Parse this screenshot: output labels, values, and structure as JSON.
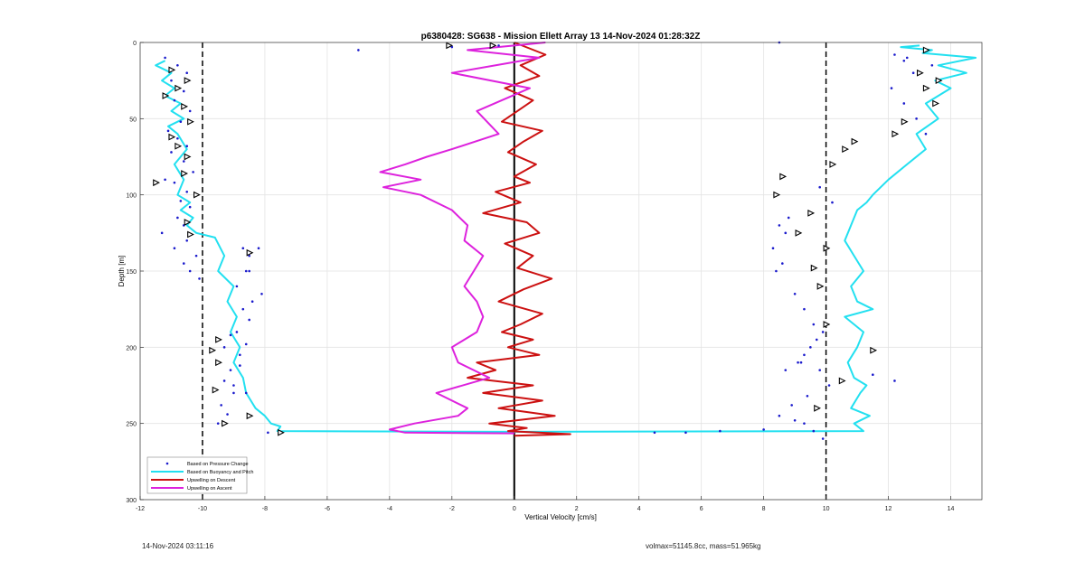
{
  "chart_data": {
    "type": "line",
    "title": "p6380428: SG638 - Mission Ellett Array 13 14-Nov-2024 01:28:32Z",
    "xlabel": "Vertical Velocity [cm/s]",
    "ylabel": "Depth [m]",
    "xlim": [
      -12,
      15
    ],
    "ylim": [
      0,
      300
    ],
    "y_reversed": true,
    "grid": true,
    "legend_position": "bottom-left",
    "x_ticks": [
      -12,
      -10,
      -8,
      -6,
      -4,
      -2,
      0,
      2,
      4,
      6,
      8,
      10,
      12,
      14
    ],
    "y_ticks": [
      0,
      50,
      100,
      150,
      200,
      250,
      300
    ],
    "reference_lines": [
      {
        "x": -10,
        "style": "dashed",
        "color": "#000000"
      },
      {
        "x": 10,
        "style": "dashed",
        "color": "#000000"
      },
      {
        "x": 0,
        "style": "solid",
        "color": "#000000"
      }
    ],
    "series": [
      {
        "name": "Based on Pressure Change",
        "style": "dots",
        "color": "#1a1acc",
        "x": [
          -11.2,
          -10.8,
          -10.5,
          -11.0,
          -10.6,
          -10.9,
          -10.4,
          -10.7,
          -11.1,
          -10.8,
          -10.5,
          -11.0,
          -10.6,
          -10.3,
          -10.9,
          -10.5,
          -11.2,
          -10.7,
          -10.4,
          -10.8,
          -10.6,
          -11.3,
          -10.5,
          -10.9,
          -10.2,
          -10.6,
          -10.4,
          -10.1,
          -8.7,
          -8.5,
          -8.6,
          -8.9,
          -8.4,
          -8.7,
          -8.5,
          -8.9,
          -8.6,
          -8.8,
          -9.1,
          -9.3,
          -9.0,
          -9.4,
          -9.2,
          -9.5,
          -9.1,
          -9.3,
          -8.8,
          -9.0,
          -8.6,
          -8.2,
          -8.5,
          -8.1,
          -7.9,
          -5.0,
          -2.0,
          -0.5,
          8.5,
          9.8,
          10.2,
          8.8,
          8.5,
          8.7,
          8.3,
          8.6,
          8.4,
          9.0,
          9.3,
          9.6,
          9.9,
          9.5,
          9.2,
          9.8,
          10.1,
          9.4,
          9.7,
          8.5,
          9.0,
          8.9,
          9.3,
          9.6,
          9.9,
          9.1,
          8.7,
          9.3,
          9.7,
          12.1,
          12.5,
          12.9,
          13.2,
          12.8,
          13.4,
          12.6,
          12.2,
          12.5,
          4.5,
          5.5,
          6.6,
          8.0,
          11.5,
          12.2
        ],
        "y": [
          10,
          15,
          20,
          25,
          32,
          38,
          45,
          52,
          58,
          63,
          68,
          72,
          78,
          85,
          92,
          98,
          90,
          104,
          108,
          115,
          120,
          125,
          130,
          135,
          140,
          145,
          150,
          155,
          135,
          140,
          150,
          160,
          170,
          175,
          182,
          190,
          198,
          205,
          215,
          222,
          230,
          238,
          244,
          250,
          192,
          200,
          212,
          225,
          230,
          135,
          150,
          165,
          256,
          5,
          3,
          2,
          0,
          95,
          105,
          115,
          120,
          125,
          135,
          145,
          150,
          165,
          175,
          185,
          190,
          200,
          210,
          215,
          225,
          232,
          240,
          245,
          248,
          238,
          250,
          255,
          260,
          210,
          215,
          205,
          195,
          30,
          40,
          50,
          60,
          20,
          15,
          10,
          8,
          12,
          256,
          256,
          255,
          254,
          218,
          222
        ]
      },
      {
        "name": "Based on Buoyancy and Pitch",
        "style": "line",
        "color": "#22e0f0",
        "x": [
          -11.2,
          -11.5,
          -11.0,
          -11.3,
          -10.9,
          -11.2,
          -10.7,
          -11.0,
          -10.6,
          -11.1,
          -10.8,
          -10.5,
          -10.9,
          -10.6,
          -10.8,
          -10.4,
          -10.7,
          -10.3,
          -10.5,
          -10.2,
          -9.6,
          -9.3,
          -9.5,
          -9.0,
          -9.2,
          -8.9,
          -9.1,
          -8.8,
          -9.0,
          -8.7,
          -8.6,
          -8.3,
          -8.0,
          -7.8,
          -7.5,
          -7.6,
          0,
          11.2,
          10.9,
          11.4,
          10.8,
          11.1,
          11.3,
          10.9,
          10.7,
          11.0,
          11.2,
          10.6,
          11.5,
          11.0,
          10.8,
          11.2,
          10.9,
          10.6,
          10.8,
          11.0,
          11.3,
          11.5,
          12.0,
          12.6,
          13.2,
          12.9,
          13.6,
          13.2,
          14.0,
          13.5,
          14.5,
          13.6,
          14.8,
          13.1,
          13.4,
          12.4,
          13.0
        ],
        "y": [
          12,
          15,
          20,
          25,
          30,
          35,
          40,
          45,
          50,
          55,
          60,
          70,
          80,
          90,
          100,
          105,
          110,
          115,
          120,
          125,
          128,
          140,
          150,
          160,
          170,
          180,
          190,
          200,
          210,
          220,
          230,
          240,
          245,
          250,
          252,
          255,
          255.5,
          255,
          250,
          245,
          240,
          230,
          225,
          220,
          210,
          200,
          190,
          180,
          175,
          170,
          160,
          150,
          140,
          130,
          120,
          110,
          105,
          100,
          90,
          80,
          70,
          60,
          50,
          40,
          30,
          25,
          20,
          15,
          10,
          7,
          5,
          3,
          2
        ]
      },
      {
        "name": "Upwelling on Descent",
        "style": "line",
        "color": "#cc1111",
        "x": [
          0,
          1.0,
          0.2,
          0.8,
          -0.3,
          0.6,
          0.1,
          -0.4,
          0.9,
          0.3,
          -0.2,
          0.7,
          0.0,
          0.5,
          -0.6,
          0.2,
          -1.0,
          0.4,
          0.8,
          -0.3,
          0.6,
          0.1,
          1.2,
          0.3,
          -0.5,
          0.9,
          0.2,
          -0.4,
          0.6,
          -0.2,
          0.8,
          -1.2,
          -0.6,
          -1.5,
          0.6,
          -1.0,
          0.9,
          -0.5,
          1.3,
          -0.8,
          0.4,
          -0.2,
          1.8,
          0
        ],
        "y": [
          0,
          8,
          15,
          22,
          30,
          38,
          45,
          52,
          58,
          65,
          72,
          80,
          88,
          92,
          98,
          105,
          112,
          118,
          125,
          132,
          140,
          148,
          155,
          162,
          170,
          178,
          185,
          190,
          195,
          200,
          205,
          210,
          215,
          220,
          225,
          230,
          235,
          240,
          245,
          250,
          253,
          255,
          257,
          258
        ]
      },
      {
        "name": "Upwelling on Ascent",
        "style": "line",
        "color": "#dd22dd",
        "x": [
          1.0,
          -1.5,
          0.8,
          -2.0,
          0.5,
          -1.2,
          -0.5,
          -2.0,
          -2.8,
          -3.5,
          -4.3,
          -3.0,
          -4.2,
          -3.0,
          -2.0,
          -1.5,
          -1.6,
          -1.0,
          -1.3,
          -1.6,
          -1.2,
          -1.0,
          -1.2,
          -2.0,
          -1.8,
          -0.8,
          -2.5,
          -1.5,
          -1.8,
          -3.2,
          -4.0,
          -3.5,
          0
        ],
        "y": [
          0,
          5,
          10,
          20,
          30,
          45,
          60,
          70,
          75,
          80,
          85,
          90,
          95,
          100,
          110,
          120,
          130,
          140,
          150,
          160,
          170,
          180,
          190,
          200,
          210,
          220,
          230,
          240,
          245,
          250,
          254,
          256,
          256.5
        ]
      },
      {
        "name": "",
        "style": "triangles",
        "color": "#000000",
        "x": [
          -11.0,
          -10.5,
          -10.8,
          -11.2,
          -10.6,
          -10.4,
          -11.0,
          -10.8,
          -10.5,
          -10.6,
          -11.5,
          -10.2,
          -10.5,
          -10.4,
          -8.5,
          -9.5,
          -9.7,
          -9.5,
          -9.6,
          -8.5,
          -7.5,
          -9.3,
          -2.1,
          -0.7,
          10.2,
          10.6,
          10.9,
          8.6,
          8.4,
          9.5,
          9.1,
          10.0,
          9.6,
          9.8,
          10.0,
          11.5,
          10.5,
          9.7,
          12.5,
          12.2,
          13.2,
          13.6,
          13.5,
          13.0,
          13.2
        ],
        "y": [
          18,
          25,
          30,
          35,
          42,
          52,
          62,
          68,
          75,
          86,
          92,
          100,
          118,
          126,
          138,
          195,
          202,
          210,
          228,
          245,
          256,
          250,
          2,
          2,
          80,
          70,
          65,
          88,
          100,
          112,
          125,
          135,
          148,
          160,
          185,
          202,
          222,
          240,
          52,
          60,
          30,
          25,
          40,
          20,
          5
        ]
      }
    ],
    "footer_left": "14-Nov-2024 03:11:16",
    "footer_right": "volmax=51145.8cc, mass=51.965kg"
  }
}
